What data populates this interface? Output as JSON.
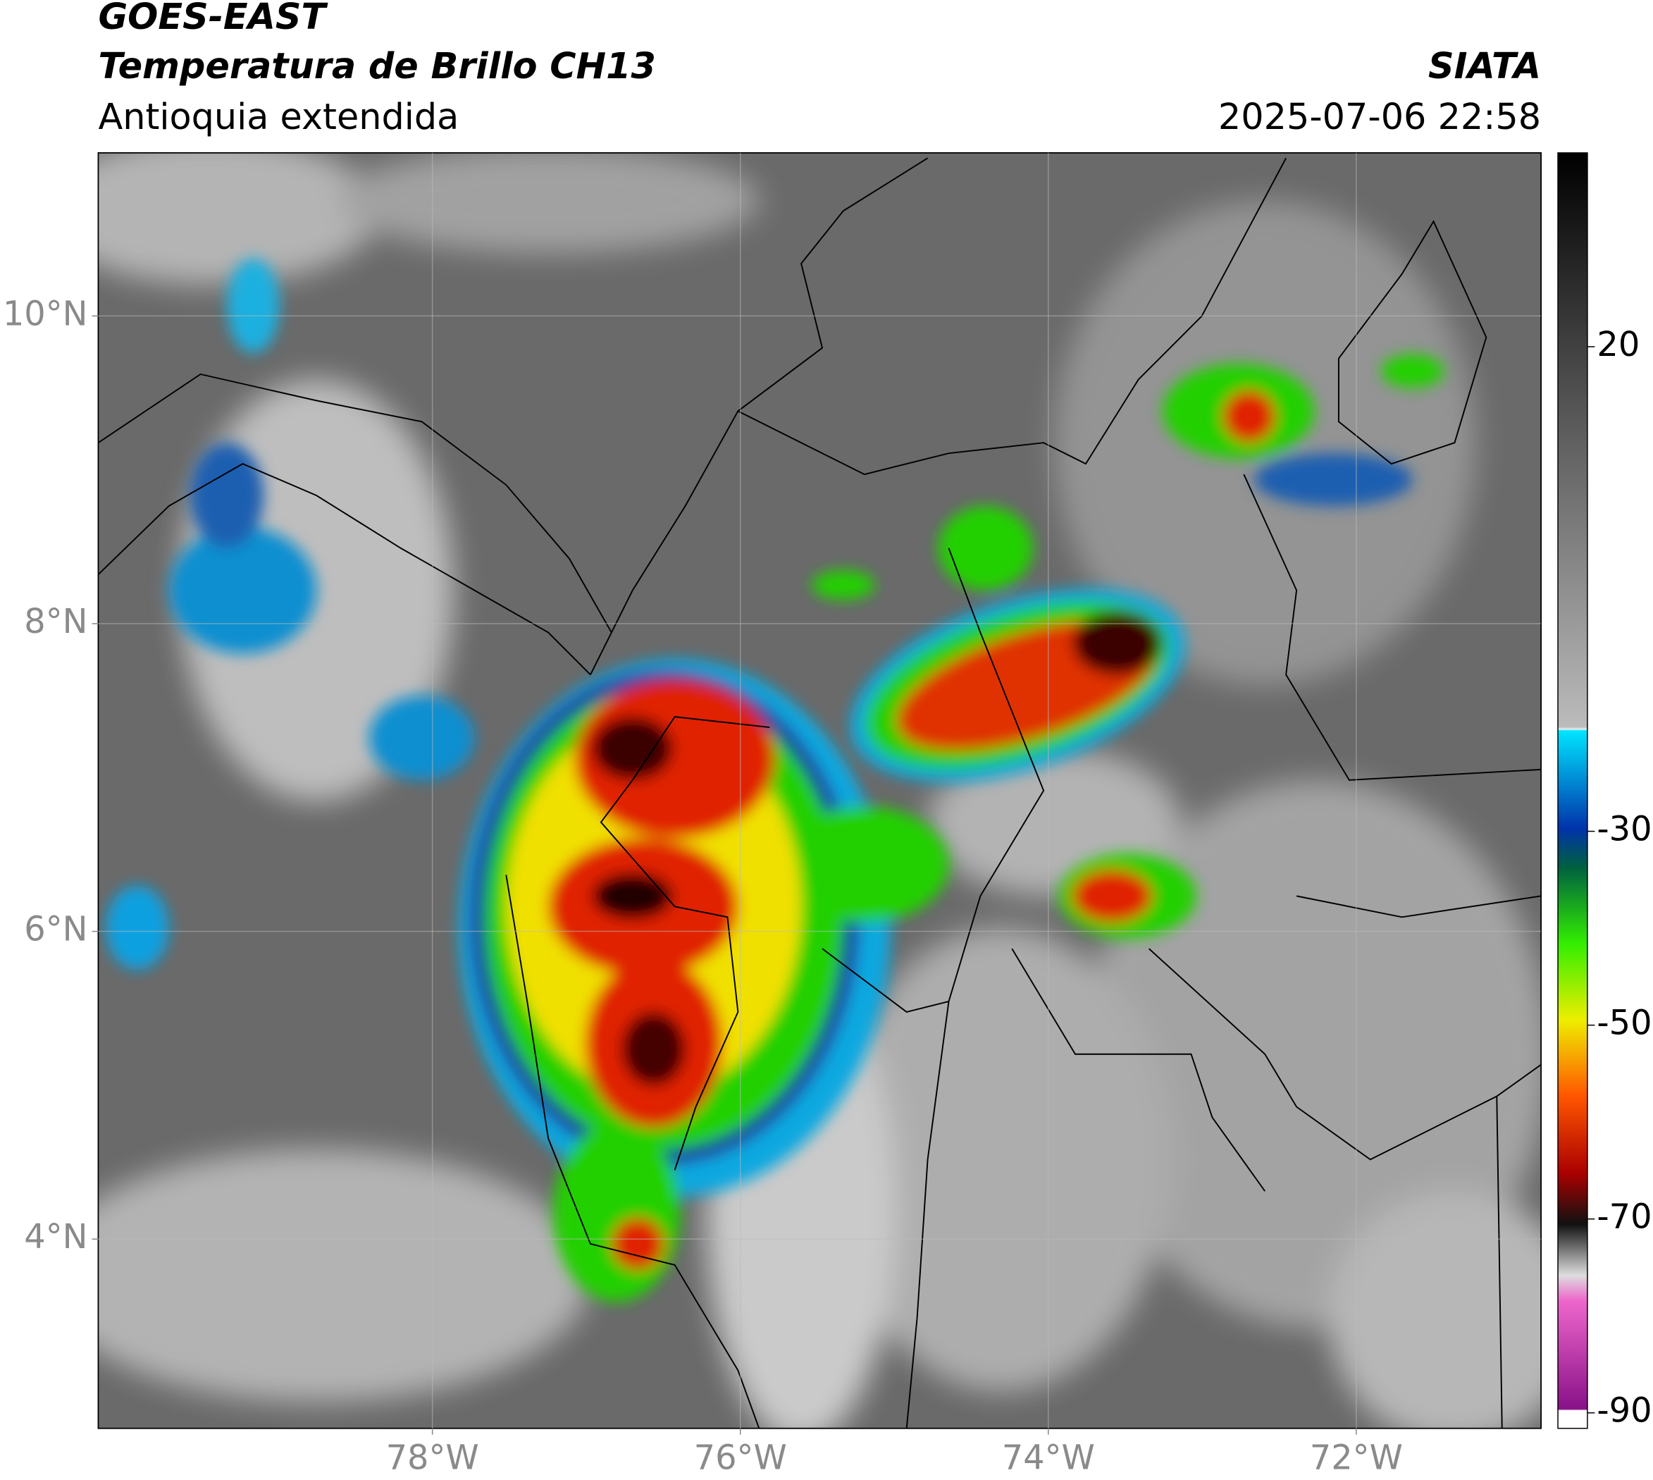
{
  "header": {
    "title": "GOES-EAST",
    "subtitle": "Temperatura de Brillo CH13",
    "region": "Antioquia extendida",
    "source": "SIATA",
    "timestamp": "2025-07-06 22:58"
  },
  "map": {
    "xlim": [
      -80.17,
      -70.8
    ],
    "ylim": [
      2.77,
      11.06
    ],
    "xticks": [
      {
        "value": -78,
        "label": "78°W"
      },
      {
        "value": -76,
        "label": "76°W"
      },
      {
        "value": -74,
        "label": "74°W"
      },
      {
        "value": -72,
        "label": "72°W"
      }
    ],
    "yticks": [
      {
        "value": 4,
        "label": "4°N"
      },
      {
        "value": 6,
        "label": "6°N"
      },
      {
        "value": 8,
        "label": "8°N"
      },
      {
        "value": 10,
        "label": "10°N"
      }
    ],
    "grid": true
  },
  "colorbar": {
    "lim": [
      -91.6,
      40
    ],
    "ticks": [
      20,
      -30,
      -50,
      -70,
      -90
    ]
  }
}
